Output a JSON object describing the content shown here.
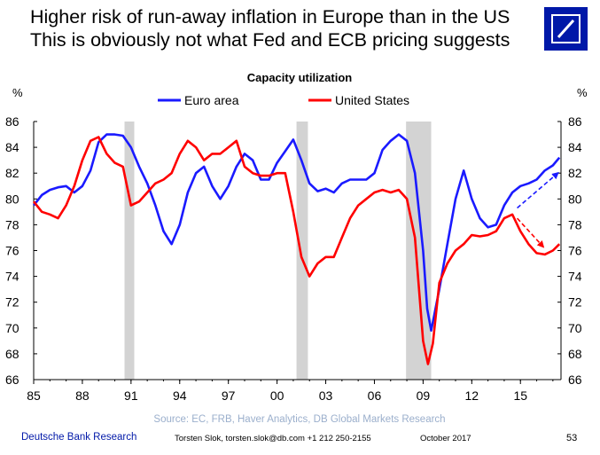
{
  "headline": {
    "line1": "Higher risk of run-away inflation in Europe than in the US",
    "line2": "This is obviously not what Fed and ECB pricing suggests"
  },
  "logo": {
    "icon": "deutsche-bank-slash-square-icon",
    "color": "#0018a8"
  },
  "footer": {
    "brand": "Deutsche Bank Research",
    "author": "Torsten Slok, torsten.slok@db.com +1 212 250-2155",
    "date": "October 2017",
    "page": "53"
  },
  "chart_data": {
    "type": "line",
    "title": "Capacity utilization",
    "ylabel_left": "%",
    "ylabel_right": "%",
    "source": "Source: EC, FRB, Haver Analytics, DB Global Markets Research",
    "xlim": [
      1985,
      2017.5
    ],
    "ylim": [
      66,
      86
    ],
    "yticks": [
      66,
      68,
      70,
      72,
      74,
      76,
      78,
      80,
      82,
      84,
      86
    ],
    "xtick_values": [
      1985,
      1988,
      1991,
      1994,
      1997,
      2000,
      2003,
      2006,
      2009,
      2012,
      2015
    ],
    "xtick_labels": [
      "85",
      "88",
      "91",
      "94",
      "97",
      "00",
      "03",
      "06",
      "09",
      "12",
      "15"
    ],
    "legend_placement": "top",
    "grid": false,
    "recessions": [
      [
        1990.6,
        1991.2
      ],
      [
        2001.2,
        2001.9
      ],
      [
        2007.95,
        2009.5
      ]
    ],
    "recession_color": "#d3d3d3",
    "series": [
      {
        "name": "Euro area",
        "color": "#1a1aff",
        "x": [
          1985.0,
          1985.5,
          1986.0,
          1986.5,
          1987.0,
          1987.5,
          1988.0,
          1988.5,
          1989.0,
          1989.5,
          1990.0,
          1990.5,
          1991.0,
          1991.5,
          1992.0,
          1992.5,
          1993.0,
          1993.5,
          1994.0,
          1994.5,
          1995.0,
          1995.5,
          1996.0,
          1996.5,
          1997.0,
          1997.5,
          1998.0,
          1998.5,
          1999.0,
          1999.5,
          2000.0,
          2000.5,
          2001.0,
          2001.5,
          2002.0,
          2002.5,
          2003.0,
          2003.5,
          2004.0,
          2004.5,
          2005.0,
          2005.5,
          2006.0,
          2006.5,
          2007.0,
          2007.5,
          2008.0,
          2008.5,
          2009.0,
          2009.25,
          2009.5,
          2010.0,
          2010.5,
          2011.0,
          2011.5,
          2012.0,
          2012.5,
          2013.0,
          2013.5,
          2014.0,
          2014.5,
          2015.0,
          2015.5,
          2016.0,
          2016.5,
          2017.0,
          2017.4
        ],
        "values": [
          79.5,
          80.3,
          80.7,
          80.9,
          81.0,
          80.5,
          81.0,
          82.2,
          84.4,
          85.0,
          85.0,
          84.9,
          84.0,
          82.5,
          81.2,
          79.5,
          77.5,
          76.5,
          78.0,
          80.5,
          82.0,
          82.5,
          81.0,
          80.0,
          81.0,
          82.5,
          83.5,
          83.0,
          81.5,
          81.5,
          82.8,
          83.7,
          84.6,
          83.0,
          81.2,
          80.6,
          80.8,
          80.5,
          81.2,
          81.5,
          81.5,
          81.5,
          82.0,
          83.8,
          84.5,
          85.0,
          84.5,
          82.0,
          76.0,
          71.5,
          69.8,
          73.0,
          76.5,
          80.0,
          82.2,
          80.0,
          78.5,
          77.8,
          78.0,
          79.5,
          80.5,
          81.0,
          81.2,
          81.5,
          82.2,
          82.6,
          83.2
        ]
      },
      {
        "name": "United States",
        "color": "#ff0000",
        "x": [
          1985.0,
          1985.5,
          1986.0,
          1986.5,
          1987.0,
          1987.5,
          1988.0,
          1988.5,
          1989.0,
          1989.5,
          1990.0,
          1990.5,
          1991.0,
          1991.5,
          1992.0,
          1992.5,
          1993.0,
          1993.5,
          1994.0,
          1994.5,
          1995.0,
          1995.5,
          1996.0,
          1996.5,
          1997.0,
          1997.5,
          1998.0,
          1998.5,
          1999.0,
          1999.5,
          2000.0,
          2000.5,
          2001.0,
          2001.5,
          2002.0,
          2002.5,
          2003.0,
          2003.5,
          2004.0,
          2004.5,
          2005.0,
          2005.5,
          2006.0,
          2006.5,
          2007.0,
          2007.5,
          2008.0,
          2008.5,
          2009.0,
          2009.3,
          2009.6,
          2010.0,
          2010.5,
          2011.0,
          2011.5,
          2012.0,
          2012.5,
          2013.0,
          2013.5,
          2014.0,
          2014.5,
          2015.0,
          2015.5,
          2016.0,
          2016.5,
          2017.0,
          2017.4
        ],
        "values": [
          79.8,
          79.0,
          78.8,
          78.5,
          79.5,
          81.0,
          83.0,
          84.5,
          84.8,
          83.5,
          82.8,
          82.5,
          79.5,
          79.8,
          80.5,
          81.2,
          81.5,
          82.0,
          83.5,
          84.5,
          84.0,
          83.0,
          83.5,
          83.5,
          84.0,
          84.5,
          82.5,
          82.0,
          81.8,
          81.8,
          82.0,
          82.0,
          79.0,
          75.5,
          74.0,
          75.0,
          75.5,
          75.5,
          77.0,
          78.5,
          79.5,
          80.0,
          80.5,
          80.7,
          80.5,
          80.7,
          80.0,
          77.0,
          69.0,
          67.2,
          68.8,
          73.5,
          75.0,
          76.0,
          76.5,
          77.2,
          77.1,
          77.2,
          77.5,
          78.5,
          78.8,
          77.5,
          76.5,
          75.8,
          75.7,
          76.0,
          76.5
        ]
      }
    ],
    "projections": [
      {
        "series": "Euro area",
        "color": "#1a1aff",
        "x": [
          2014.8,
          2017.3
        ],
        "y": [
          79.3,
          82.0
        ]
      },
      {
        "series": "United States",
        "color": "#ff0000",
        "x": [
          2014.8,
          2016.4
        ],
        "y": [
          78.5,
          76.3
        ]
      }
    ]
  }
}
